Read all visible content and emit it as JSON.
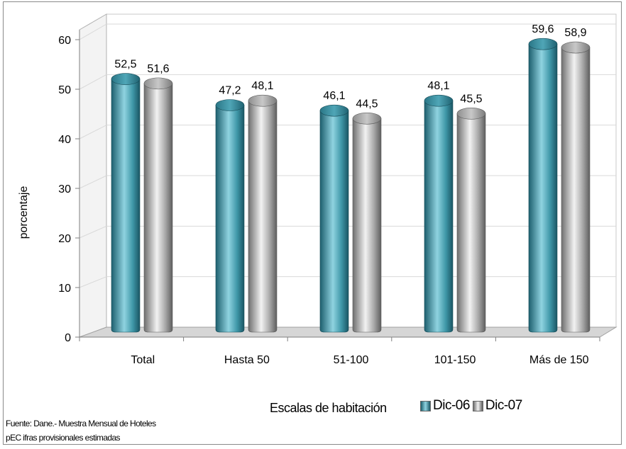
{
  "chart_data": {
    "type": "bar",
    "categories": [
      "Total",
      "Hasta 50",
      "51-100",
      "101-150",
      "Más de 150"
    ],
    "series": [
      {
        "name": "Dic-06",
        "values": [
          52.5,
          47.2,
          46.1,
          48.1,
          59.6
        ],
        "labels": [
          "52,5",
          "47,2",
          "46,1",
          "48,1",
          "59,6"
        ]
      },
      {
        "name": "Dic-07",
        "values": [
          51.6,
          48.1,
          44.5,
          45.5,
          58.9
        ],
        "labels": [
          "51,6",
          "48,1",
          "44,5",
          "45,5",
          "58,9"
        ]
      }
    ],
    "ylabel": "porcentaje",
    "xlabel": "Escalas de habitación",
    "ylim": [
      0,
      60
    ],
    "yticks": [
      0,
      10,
      20,
      30,
      40,
      50,
      60
    ],
    "grid": true,
    "legend_position": "bottom-right",
    "colors": {
      "Dic-06": "#2e7c8e",
      "Dic-07": "#9a9a9a"
    },
    "source_lines": [
      "Fuente: Dane.- Muestra Mensual de Hoteles",
      "pEC ifras provisionales estimadas"
    ]
  }
}
